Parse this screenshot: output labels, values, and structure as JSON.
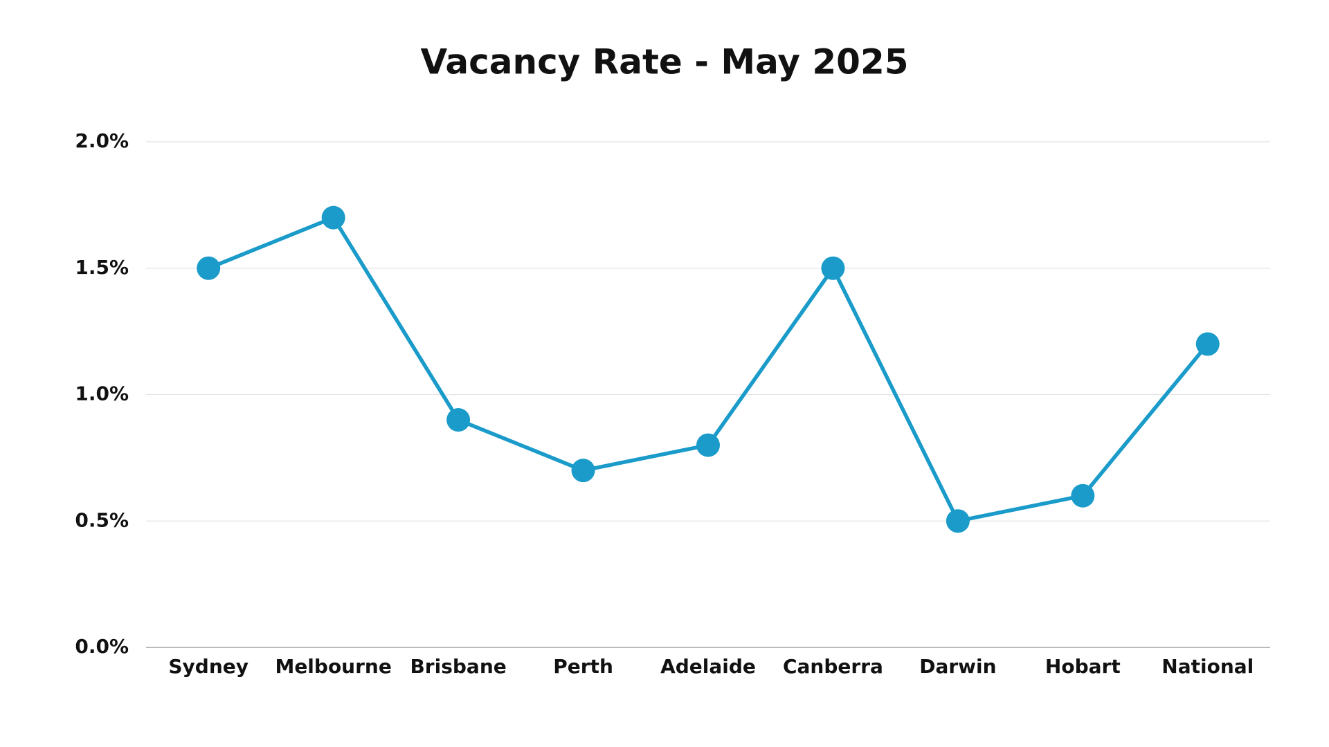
{
  "chart_data": {
    "type": "line",
    "title": "Vacancy Rate - May 2025",
    "categories": [
      "Sydney",
      "Melbourne",
      "Brisbane",
      "Perth",
      "Adelaide",
      "Canberra",
      "Darwin",
      "Hobart",
      "National"
    ],
    "values": [
      1.5,
      1.7,
      0.9,
      0.7,
      0.8,
      1.5,
      0.5,
      0.6,
      1.2
    ],
    "color": "#1a9bc9",
    "ylim": [
      0,
      2
    ],
    "yticks": [
      {
        "value": 0,
        "label": "0.0%"
      },
      {
        "value": 0.5,
        "label": "0.5%"
      },
      {
        "value": 1,
        "label": "1.0%"
      },
      {
        "value": 1.5,
        "label": "1.5%"
      },
      {
        "value": 2,
        "label": "2.0%"
      }
    ],
    "grid": true
  }
}
